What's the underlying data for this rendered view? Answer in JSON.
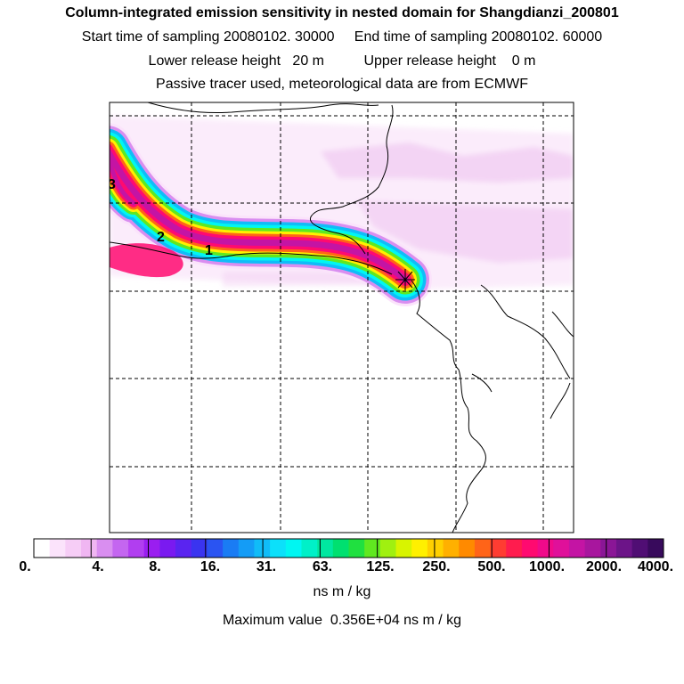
{
  "header": {
    "title": "Column-integrated emission sensitivity in nested domain for Shangdianzi_200801",
    "line2": "Start time of sampling 20080102. 30000     End time of sampling 20080102. 60000",
    "line3": "Lower release height   20 m          Upper release height    0 m",
    "line4": "Passive tracer used, meteorological data are from ECMWF"
  },
  "chart_data": {
    "type": "heatmap",
    "title": "Column-integrated emission sensitivity in nested domain for Shangdianzi_200801",
    "unit": "ns m / kg",
    "max_value_label": "Maximum value  0.356E+04 ns m / kg",
    "colorbar_ticks": [
      "0.",
      "4.",
      "8.",
      "16.",
      "31.",
      "63.",
      "125.",
      "250.",
      "500.",
      "1000.",
      "2000.",
      "4000."
    ],
    "colorbar_colors": [
      "#ffffff",
      "#fbe3fb",
      "#f6cdf6",
      "#f0b6f2",
      "#d98ef0",
      "#c466f0",
      "#b13ef0",
      "#9a1ef0",
      "#7a1af0",
      "#5a24f0",
      "#3a34f0",
      "#2a54f2",
      "#1a7cf4",
      "#149cf6",
      "#10bcf8",
      "#0ce0fa",
      "#00f6f2",
      "#00f0c8",
      "#00e8a0",
      "#00e070",
      "#20e040",
      "#60e820",
      "#a0f010",
      "#d8f400",
      "#fff000",
      "#ffd000",
      "#ffb000",
      "#ff8a00",
      "#ff6418",
      "#ff3c32",
      "#ff1c4e",
      "#ff0a70",
      "#f00a8a",
      "#e0109a",
      "#c414a4",
      "#a8169e",
      "#8a1696",
      "#6c1488",
      "#500e74",
      "#380a5c"
    ],
    "plume_levels": [
      {
        "level": 1,
        "value": "4",
        "color": "#fbe3fb"
      },
      {
        "level": 2,
        "value": "8",
        "color": "#d98ef0"
      },
      {
        "level": 3,
        "value": "31",
        "color": "#10bcf8"
      },
      {
        "level": 4,
        "value": "63",
        "color": "#00f6f2"
      },
      {
        "level": 5,
        "value": "125",
        "color": "#60e820"
      },
      {
        "level": 6,
        "value": "250",
        "color": "#fff000"
      },
      {
        "level": 7,
        "value": "500",
        "color": "#ff6418"
      },
      {
        "level": 8,
        "value": "1000",
        "color": "#ff0a70"
      },
      {
        "level": 9,
        "value": "2000",
        "color": "#c414a4"
      }
    ],
    "annotations": [
      {
        "text": "1",
        "meaning": "day 1 position"
      },
      {
        "text": "2",
        "meaning": "day 2 position"
      },
      {
        "text": "3",
        "meaning": "day 3 position"
      }
    ],
    "release_marker": "Shangdianzi receptor",
    "grid": true
  }
}
